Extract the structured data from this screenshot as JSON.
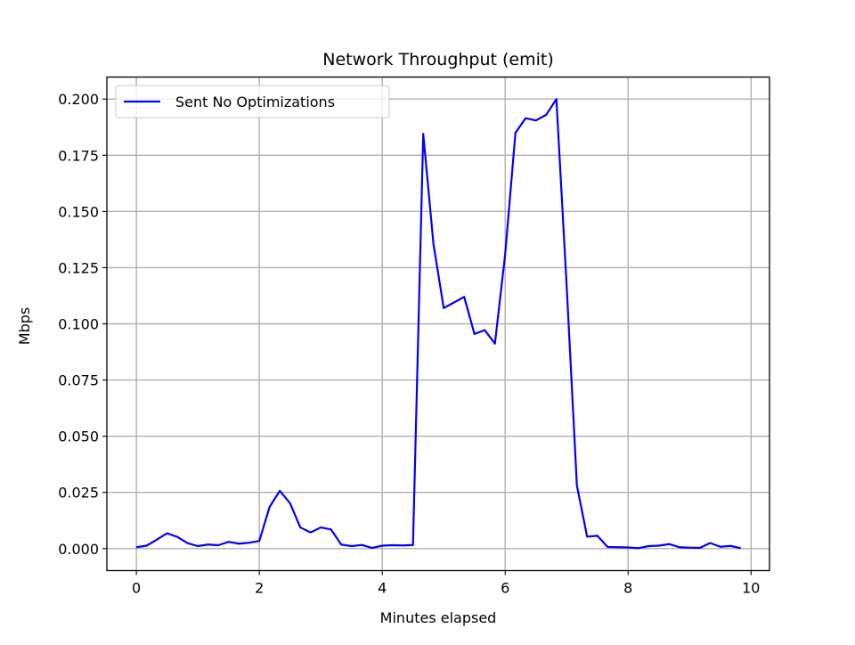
{
  "chart_data": {
    "type": "line",
    "title": "Network Throughput (emit)",
    "xlabel": "Minutes elapsed",
    "ylabel": "Mbps",
    "xlim": [
      -0.48,
      10.3
    ],
    "ylim": [
      -0.0098,
      0.2098
    ],
    "xticks": [
      0,
      2,
      4,
      6,
      8,
      10
    ],
    "yticks": [
      0.0,
      0.025,
      0.05,
      0.075,
      0.1,
      0.125,
      0.15,
      0.175,
      0.2
    ],
    "xtick_labels": [
      "0",
      "2",
      "4",
      "6",
      "8",
      "10"
    ],
    "ytick_labels": [
      "0.000",
      "0.025",
      "0.050",
      "0.075",
      "0.100",
      "0.125",
      "0.150",
      "0.175",
      "0.200"
    ],
    "grid": true,
    "legend_position": "upper-left",
    "series": [
      {
        "name": "Sent No Optimizations",
        "color": "#0000ff",
        "x": [
          0.0,
          0.167,
          0.333,
          0.5,
          0.667,
          0.833,
          1.0,
          1.167,
          1.333,
          1.5,
          1.667,
          1.833,
          2.0,
          2.167,
          2.333,
          2.5,
          2.667,
          2.833,
          3.0,
          3.167,
          3.333,
          3.5,
          3.667,
          3.833,
          4.0,
          4.167,
          4.333,
          4.5,
          4.667,
          4.833,
          5.0,
          5.167,
          5.333,
          5.5,
          5.667,
          5.833,
          6.0,
          6.167,
          6.333,
          6.5,
          6.667,
          6.833,
          7.0,
          7.167,
          7.333,
          7.5,
          7.667,
          7.833,
          8.0,
          8.167,
          8.333,
          8.5,
          8.667,
          8.833,
          9.0,
          9.167,
          9.333,
          9.5,
          9.667,
          9.833
        ],
        "y": [
          0.0006,
          0.0013,
          0.004,
          0.0068,
          0.0052,
          0.0024,
          0.0011,
          0.0018,
          0.0015,
          0.003,
          0.0022,
          0.0026,
          0.0034,
          0.0185,
          0.0257,
          0.0202,
          0.0094,
          0.0072,
          0.0094,
          0.0085,
          0.0018,
          0.0011,
          0.0016,
          0.0003,
          0.0013,
          0.0015,
          0.0014,
          0.0016,
          0.1845,
          0.1355,
          0.107,
          0.1095,
          0.112,
          0.0955,
          0.0972,
          0.0912,
          0.131,
          0.185,
          0.1915,
          0.1905,
          0.193,
          0.2,
          0.117,
          0.028,
          0.0053,
          0.0057,
          0.0007,
          0.0006,
          0.0005,
          0.0002,
          0.0011,
          0.0013,
          0.002,
          0.0006,
          0.0004,
          0.0003,
          0.0025,
          0.0008,
          0.0012,
          0.0002
        ]
      }
    ]
  }
}
